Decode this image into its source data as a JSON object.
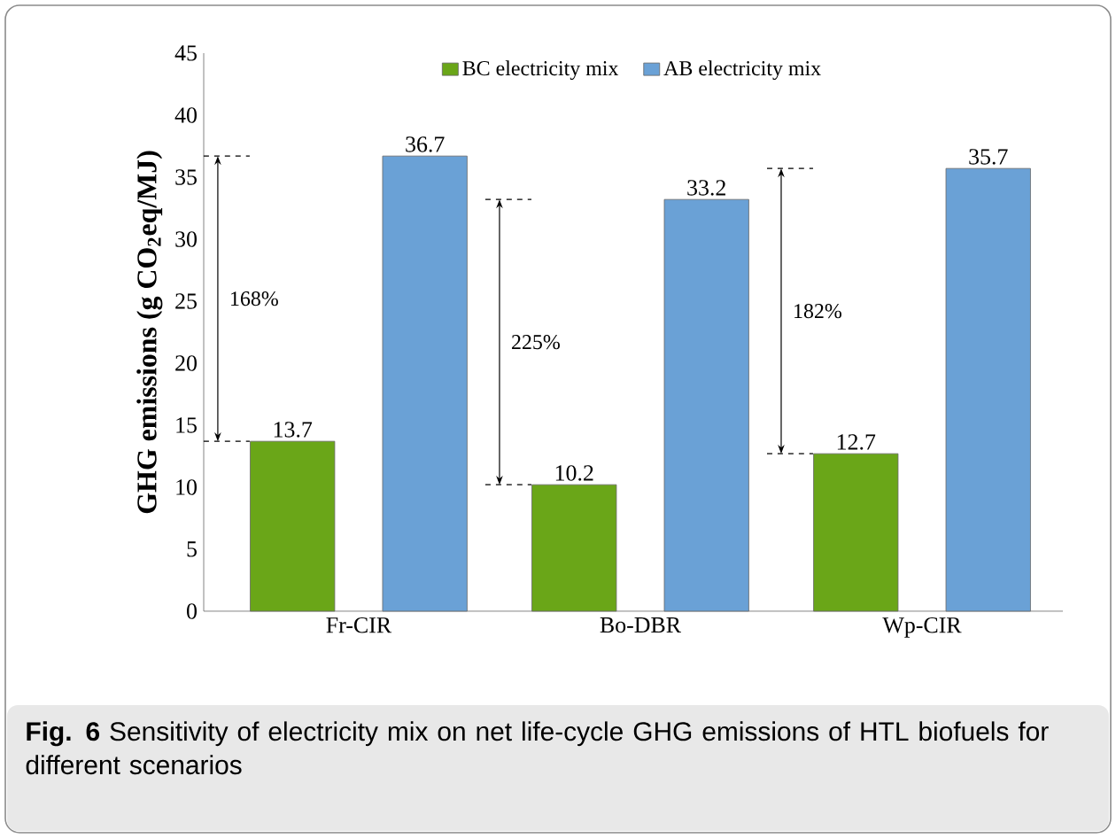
{
  "chart_data": {
    "type": "bar",
    "ylabel": "GHG emissions  (g CO$_{2}$eq/MJ)",
    "categories": [
      "Fr-CIR",
      "Bo-DBR",
      "Wp-CIR"
    ],
    "series": [
      {
        "name": "BC electricity mix",
        "color": "#6aa618",
        "values": [
          13.7,
          10.2,
          12.7
        ]
      },
      {
        "name": "AB electricity mix",
        "color": "#6aa1d6",
        "values": [
          36.7,
          33.2,
          35.7
        ]
      }
    ],
    "ylim": [
      0,
      45
    ],
    "yticks": [
      0,
      5,
      10,
      15,
      20,
      25,
      30,
      35,
      40,
      45
    ],
    "data_labels": true,
    "legend": "top",
    "grid": false,
    "annotations": [
      "168%",
      "225%",
      "182%",
      "**Fig. 6** Sensitivity of electricity mix on net life-cycle GHG emissions of HTL biofuels for different scenarios"
    ]
  }
}
